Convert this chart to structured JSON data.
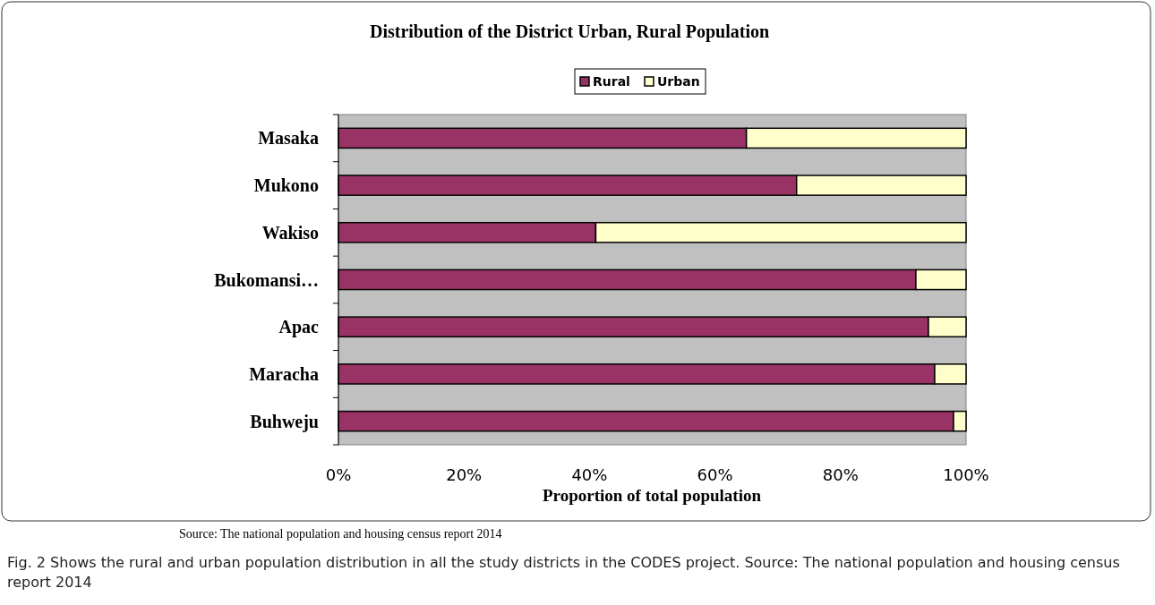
{
  "chart_data": {
    "type": "bar",
    "orientation": "horizontal",
    "stacked": true,
    "title": "Distribution of the District Urban, Rural Population",
    "xlabel": "Proportion of total population",
    "categories": [
      "Masaka",
      "Mukono",
      "Wakiso",
      "Bukomansi…",
      "Apac",
      "Maracha",
      "Buhweju"
    ],
    "series": [
      {
        "name": "Rural",
        "color": "#993366",
        "values": [
          65,
          73,
          41,
          92,
          94,
          95,
          98
        ]
      },
      {
        "name": "Urban",
        "color": "#ffffcc",
        "values": [
          35,
          27,
          59,
          8,
          6,
          5,
          2
        ]
      }
    ],
    "xlim": [
      0,
      100
    ],
    "xticks": [
      {
        "value": 0,
        "label": "0%"
      },
      {
        "value": 20,
        "label": "20%"
      },
      {
        "value": 40,
        "label": "40%"
      },
      {
        "value": 60,
        "label": "60%"
      },
      {
        "value": 80,
        "label": "80%"
      },
      {
        "value": 100,
        "label": "100%"
      }
    ],
    "grid": false,
    "legend": "top",
    "annotations": [
      "Source: The national population and housing census report 2014",
      "Fig. 2 Shows the rural and urban population distribution in all the study districts in the CODES project. Source: The national population and housing census report 2014"
    ]
  }
}
